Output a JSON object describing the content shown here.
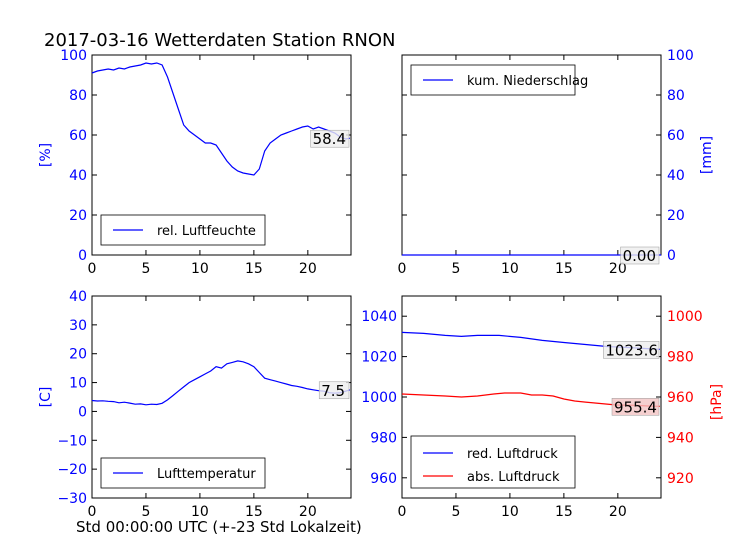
{
  "title": "2017-03-16 Wetterdaten Station RNON",
  "footer_label": "Std 00:00:00 UTC (+-23 Std Lokalzeit)",
  "colors": {
    "blue": "#0000ff",
    "red": "#ff0000",
    "black": "#000000"
  },
  "chart_data": [
    {
      "id": "humidity",
      "type": "line",
      "ylabel": "[%]",
      "xlim": [
        0,
        24
      ],
      "ylim": [
        0,
        100
      ],
      "xticks": [
        "0",
        "5",
        "10",
        "15",
        "20"
      ],
      "yticks": [
        "0",
        "20",
        "40",
        "60",
        "80",
        "100"
      ],
      "legend": "rel. Luftfeuchte",
      "legend_position": "lower-left",
      "last_value_label": "58.4",
      "series": [
        {
          "name": "rel. Luftfeuchte",
          "x": [
            0,
            0.5,
            1,
            1.5,
            2,
            2.5,
            3,
            3.5,
            4,
            4.5,
            5,
            5.5,
            6,
            6.5,
            7,
            7.5,
            8,
            8.5,
            9,
            9.5,
            10,
            10.5,
            11,
            11.5,
            12,
            12.5,
            13,
            13.5,
            14,
            14.5,
            15,
            15.5,
            16,
            16.5,
            17,
            17.5,
            18,
            18.5,
            19,
            19.5,
            20,
            20.5,
            21,
            21.5,
            22,
            22.5,
            23,
            23.5,
            23.9
          ],
          "y": [
            91,
            92,
            92.5,
            93,
            92.5,
            93.5,
            93,
            94,
            94.5,
            95,
            96,
            95.5,
            96,
            95,
            89,
            81,
            73,
            65,
            62,
            60,
            58,
            56,
            56,
            55,
            51,
            47,
            44,
            42,
            41,
            40.5,
            40,
            43,
            52,
            56,
            58,
            60,
            61,
            62,
            63,
            64,
            64.5,
            63,
            64,
            63,
            62,
            61,
            59,
            58,
            58.4
          ]
        }
      ]
    },
    {
      "id": "precipitation",
      "type": "line",
      "ylabel": "[mm]",
      "xlim": [
        0,
        24
      ],
      "ylim": [
        0,
        100
      ],
      "xticks": [
        "0",
        "5",
        "10",
        "15",
        "20"
      ],
      "yticks": [
        "0",
        "20",
        "40",
        "60",
        "80",
        "100"
      ],
      "legend": "kum. Niederschlag",
      "legend_position": "upper-left",
      "last_value_label": "0.00",
      "series": [
        {
          "name": "kum. Niederschlag",
          "x": [
            0,
            24
          ],
          "y": [
            0,
            0
          ]
        }
      ]
    },
    {
      "id": "temperature",
      "type": "line",
      "ylabel": "[C]",
      "xlim": [
        0,
        24
      ],
      "ylim": [
        -30,
        40
      ],
      "xticks": [
        "0",
        "5",
        "10",
        "15",
        "20"
      ],
      "yticks": [
        "−30",
        "−20",
        "−10",
        "0",
        "10",
        "20",
        "30",
        "40"
      ],
      "legend": "Lufttemperatur",
      "legend_position": "lower-left",
      "last_value_label": "7.5",
      "series": [
        {
          "name": "Lufttemperatur",
          "x": [
            0,
            0.5,
            1,
            1.5,
            2,
            2.5,
            3,
            3.5,
            4,
            4.5,
            5,
            5.5,
            6,
            6.5,
            7,
            7.5,
            8,
            8.5,
            9,
            9.5,
            10,
            10.5,
            11,
            11.5,
            12,
            12.5,
            13,
            13.5,
            14,
            14.5,
            15,
            15.5,
            16,
            16.5,
            17,
            17.5,
            18,
            18.5,
            19,
            19.5,
            20,
            20.5,
            21,
            21.5,
            22,
            22.5,
            23,
            23.5,
            23.9
          ],
          "y": [
            3.8,
            3.6,
            3.7,
            3.5,
            3.4,
            3,
            3.2,
            2.9,
            2.5,
            2.6,
            2.3,
            2.5,
            2.4,
            2.8,
            4,
            5.5,
            7,
            8.5,
            10,
            11,
            12,
            13,
            14,
            15.5,
            15,
            16.5,
            17,
            17.5,
            17.2,
            16.5,
            15.5,
            13.5,
            11.5,
            11,
            10.5,
            10,
            9.5,
            9,
            8.7,
            8.3,
            7.8,
            7.5,
            7.2,
            7,
            6.5,
            6.3,
            6.5,
            7,
            7.5
          ]
        }
      ]
    },
    {
      "id": "pressure",
      "type": "line",
      "xlim": [
        0,
        24
      ],
      "ylim": [
        950,
        1050
      ],
      "ylim_right": [
        910,
        1010
      ],
      "ylabel_right": "[hPa]",
      "xticks": [
        "0",
        "5",
        "10",
        "15",
        "20"
      ],
      "yticks": [
        "960",
        "980",
        "1000",
        "1020",
        "1040"
      ],
      "yticks_right": [
        "920",
        "940",
        "960",
        "980",
        "1000"
      ],
      "legend": [
        "red. Luftdruck",
        "abs. Luftdruck"
      ],
      "legend_position": "lower-left",
      "last_value_labels": [
        "1023.6",
        "955.4"
      ],
      "series": [
        {
          "name": "red. Luftdruck",
          "axis": "left",
          "x": [
            0,
            2,
            4,
            5.5,
            7,
            9,
            11,
            13,
            15,
            17,
            19,
            21,
            22.5,
            23.9
          ],
          "y": [
            1032,
            1031.5,
            1030.5,
            1030,
            1030.5,
            1030.5,
            1029.5,
            1028,
            1027,
            1026,
            1025,
            1024.5,
            1024,
            1023.6
          ]
        },
        {
          "name": "abs. Luftdruck",
          "axis": "right",
          "x": [
            0,
            2,
            4,
            5.5,
            7,
            8.5,
            9.5,
            11,
            12,
            13,
            14,
            15,
            16,
            17,
            18,
            19,
            20,
            21,
            22,
            23,
            23.9
          ],
          "y": [
            961.5,
            961,
            960.5,
            960,
            960.5,
            961.5,
            962,
            962,
            961,
            961,
            960.5,
            959,
            958,
            957.5,
            957,
            956.5,
            956,
            956,
            955.8,
            955.5,
            955.4
          ]
        }
      ]
    }
  ]
}
